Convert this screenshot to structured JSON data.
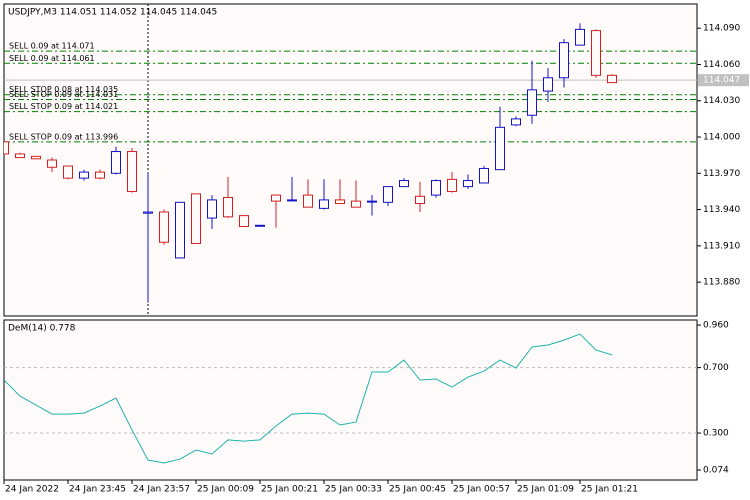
{
  "chart_data": [
    {
      "type": "candlestick",
      "title": "USDJPY,M3  114.051 114.052 114.045 114.045",
      "categories": [
        "24 Jan 2022",
        null,
        null,
        null,
        "24 Jan 23:45",
        null,
        null,
        null,
        "24 Jan 23:57",
        null,
        null,
        null,
        "25 Jan 00:09",
        null,
        null,
        null,
        "25 Jan 00:21",
        null,
        null,
        null,
        "25 Jan 00:33",
        null,
        null,
        null,
        "25 Jan 00:45",
        null,
        null,
        null,
        "25 Jan 00:57",
        null,
        null,
        null,
        "25 Jan 01:09",
        null,
        null,
        null,
        "25 Jan 01:21",
        null,
        null
      ],
      "open": [
        113.996,
        113.986,
        113.984,
        113.981,
        113.976,
        113.966,
        113.971,
        113.97,
        113.988,
        113.937,
        113.938,
        113.9,
        113.953,
        113.933,
        113.95,
        113.935,
        113.927,
        113.952,
        113.948,
        113.952,
        113.941,
        113.948,
        113.947,
        113.947,
        113.946,
        113.959,
        113.951,
        113.952,
        113.965,
        113.959,
        113.962,
        113.973,
        114.01,
        114.018,
        114.038,
        114.049,
        114.076,
        114.088,
        114.051
      ],
      "high": [
        113.996,
        113.987,
        113.984,
        113.983,
        113.976,
        113.973,
        113.973,
        113.992,
        113.991,
        113.971,
        113.94,
        113.946,
        113.953,
        113.952,
        113.967,
        113.935,
        113.927,
        113.952,
        113.967,
        113.965,
        113.965,
        113.965,
        113.964,
        113.952,
        113.959,
        113.966,
        113.963,
        113.965,
        113.971,
        113.969,
        113.976,
        114.025,
        114.017,
        114.063,
        114.057,
        114.081,
        114.094,
        114.089,
        114.052
      ],
      "low": [
        113.986,
        113.983,
        113.982,
        113.971,
        113.965,
        113.964,
        113.965,
        113.969,
        113.954,
        113.863,
        113.911,
        113.9,
        113.912,
        113.924,
        113.933,
        113.926,
        113.927,
        113.925,
        113.948,
        113.942,
        113.94,
        113.945,
        113.942,
        113.935,
        113.943,
        113.959,
        113.938,
        113.95,
        113.954,
        113.957,
        113.962,
        113.973,
        114.009,
        114.011,
        114.029,
        114.041,
        114.076,
        114.049,
        114.045
      ],
      "close": [
        113.986,
        113.983,
        113.982,
        113.975,
        113.966,
        113.971,
        113.966,
        113.988,
        113.955,
        113.938,
        113.913,
        113.946,
        113.912,
        113.948,
        113.934,
        113.926,
        113.927,
        113.947,
        113.948,
        113.942,
        113.948,
        113.945,
        113.942,
        113.947,
        113.959,
        113.964,
        113.945,
        113.964,
        113.955,
        113.964,
        113.974,
        114.008,
        114.015,
        114.039,
        114.049,
        114.078,
        114.089,
        114.051,
        114.045
      ],
      "up_color": "#1414c8",
      "down_color": "#d42020",
      "ylim": [
        113.852,
        114.11
      ],
      "yticks": [
        {
          "value": 114.09,
          "label": "114.090"
        },
        {
          "value": 114.06,
          "label": "114.060"
        },
        {
          "value": 114.03,
          "label": "114.030"
        },
        {
          "value": 114.0,
          "label": "114.000"
        },
        {
          "value": 113.97,
          "label": "113.970"
        },
        {
          "value": 113.94,
          "label": "113.940"
        },
        {
          "value": 113.91,
          "label": "113.910"
        },
        {
          "value": 113.88,
          "label": "113.880"
        }
      ],
      "orders": [
        {
          "label": "SELL 0.09 at 114.071",
          "price": 114.071
        },
        {
          "label": "SELL 0.09 at 114.061",
          "price": 114.061
        },
        {
          "label": "SELL STOP 0.08 at 114.035",
          "price": 114.035
        },
        {
          "label": "SELL STOP 0.09 at 114.031",
          "price": 114.031
        },
        {
          "label": "SELL STOP 0.09 at 114.021",
          "price": 114.021
        },
        {
          "label": "SELL STOP 0.09 at 113.996",
          "price": 113.996
        }
      ],
      "order_color": "#008000",
      "bid": {
        "value": 114.047,
        "label": "114.047"
      },
      "bid_color": "#c0c0c0"
    },
    {
      "type": "line",
      "title": "DeM(14) 0.778",
      "values": [
        0.624,
        0.526,
        0.471,
        0.416,
        0.416,
        0.422,
        0.465,
        0.514,
        0.319,
        0.135,
        0.117,
        0.141,
        0.196,
        0.172,
        0.258,
        0.251,
        0.258,
        0.343,
        0.416,
        0.422,
        0.416,
        0.349,
        0.367,
        0.673,
        0.673,
        0.746,
        0.624,
        0.63,
        0.581,
        0.642,
        0.679,
        0.746,
        0.697,
        0.826,
        0.838,
        0.868,
        0.905,
        0.807,
        0.778
      ],
      "color": "#20b2aa",
      "ylim": [
        0.013,
        0.991
      ],
      "yticks": [
        {
          "value": 0.96,
          "label": "0.960"
        },
        {
          "value": 0.7,
          "label": "0.700"
        },
        {
          "value": 0.3,
          "label": "0.300"
        },
        0.074
      ],
      "levels": [
        0.7,
        0.3
      ]
    }
  ]
}
